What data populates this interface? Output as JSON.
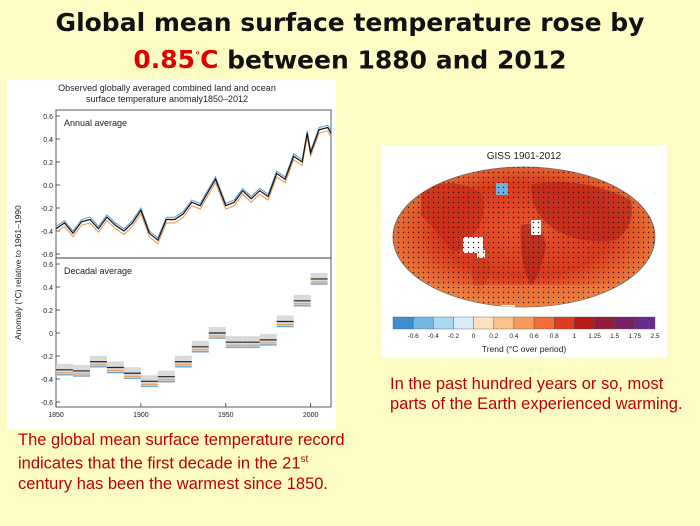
{
  "title": {
    "line1": "Global mean surface temperature rose by",
    "highlight": "0.85",
    "degree": "°",
    "unit": "C",
    "rest": " between 1880 and 2012"
  },
  "chart": {
    "title_line1": "Observed globally averaged combined land and ocean",
    "title_line2": "surface temperature anomaly1850–2012",
    "panel1_label": "Annual average",
    "panel2_label": "Decadal average",
    "ylabel": "Anomaly (°C) relative to 1961–1990",
    "ticks_top": [
      "0.6",
      "0.4",
      "0.2",
      "0.0",
      "-0.2",
      "-0.4",
      "-0.6"
    ],
    "ticks_bottom": [
      "0.6",
      "0.4",
      "0.2",
      "0",
      "-0.2",
      "-0.4",
      "-0.6"
    ],
    "xticks": [
      "1850",
      "1900",
      "1950",
      "2000"
    ]
  },
  "chart_data": {
    "type": "line",
    "title": "Observed globally averaged combined land and ocean surface temperature anomaly1850–2012",
    "xlabel": "",
    "ylabel": "Anomaly (°C) relative to 1961–1990",
    "ylim": [
      -0.6,
      0.6
    ],
    "xlim": [
      1850,
      2012
    ],
    "annual": {
      "x": [
        1850,
        1855,
        1860,
        1865,
        1870,
        1875,
        1880,
        1885,
        1890,
        1895,
        1900,
        1905,
        1910,
        1915,
        1920,
        1925,
        1930,
        1935,
        1940,
        1944,
        1950,
        1955,
        1960,
        1965,
        1970,
        1975,
        1980,
        1985,
        1990,
        1995,
        1998,
        2000,
        2005,
        2010,
        2012
      ],
      "y": [
        -0.38,
        -0.33,
        -0.42,
        -0.32,
        -0.3,
        -0.38,
        -0.28,
        -0.35,
        -0.4,
        -0.33,
        -0.22,
        -0.42,
        -0.48,
        -0.3,
        -0.3,
        -0.25,
        -0.15,
        -0.18,
        -0.05,
        0.05,
        -0.18,
        -0.15,
        -0.05,
        -0.12,
        -0.05,
        -0.1,
        0.1,
        0.05,
        0.25,
        0.2,
        0.45,
        0.28,
        0.48,
        0.5,
        0.45
      ]
    },
    "decadal": {
      "x": [
        1855,
        1865,
        1875,
        1885,
        1895,
        1905,
        1915,
        1925,
        1935,
        1945,
        1955,
        1965,
        1975,
        1985,
        1995,
        2005
      ],
      "y": [
        -0.32,
        -0.33,
        -0.25,
        -0.3,
        -0.35,
        -0.42,
        -0.38,
        -0.25,
        -0.12,
        0.0,
        -0.08,
        -0.08,
        -0.06,
        0.1,
        0.28,
        0.47
      ]
    }
  },
  "map": {
    "title": "GISS 1901-2012",
    "tick_labels": [
      "-0.6",
      "-0.4",
      "-0.2",
      "0",
      "0.2",
      "0.4",
      "0.6",
      "0.8",
      "1",
      "1.25",
      "1.5",
      "1.75",
      "2.5"
    ],
    "colorbar_colors": [
      "#3f8fd0",
      "#74b6e6",
      "#a9d8f2",
      "#d8edf8",
      "#fde3c0",
      "#fbc18a",
      "#f79a5a",
      "#f06d3a",
      "#dc3c20",
      "#b81c18",
      "#921c3c",
      "#7a1f66",
      "#6a2a90"
    ],
    "label": "Trend (°C over period)"
  },
  "captions": {
    "left_part1": "The  global mean surface temperature record indicates that the first decade in the 21",
    "left_sup": "st",
    "left_part2": " century has been the warmest since 1850.",
    "right": "In the past hundred years or so, most parts of the Earth experienced warming."
  },
  "colors": {
    "background": "#fdfcc4",
    "accent_red": "#e00000",
    "caption_red": "#c00000"
  }
}
